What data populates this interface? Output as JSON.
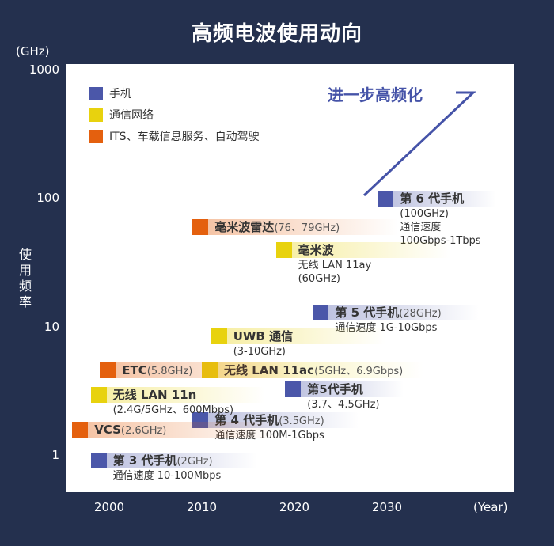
{
  "title": "高频电波使用动向",
  "y_unit": "(GHz)",
  "y_axis_title": "使用频率",
  "x_unit": "(Year)",
  "chart_data": {
    "type": "timeline",
    "y_scale": "log",
    "ylim": [
      0.5,
      1000
    ],
    "xlim": [
      1996,
      2044
    ],
    "yticks": [
      "1000",
      "100",
      "10",
      "1"
    ],
    "xticks": [
      "2000",
      "2010",
      "2020",
      "2030"
    ],
    "trend_label": "进一步高频化",
    "legend": [
      {
        "label": "手机",
        "color": "#4b57a9"
      },
      {
        "label": "通信网络",
        "color": "#e8d20e"
      },
      {
        "label": "ITS、车载信息服务、自动驾驶",
        "color": "#e4600e"
      }
    ],
    "entries": [
      {
        "category": 0,
        "year": 1998,
        "y": 0.92,
        "name": "第 3 代手机",
        "extra": "(2GHz)",
        "sub": [
          "通信速度 10-100Mbps"
        ]
      },
      {
        "category": 0,
        "year": 2009,
        "y": 1.9,
        "name": "第 4 代手机",
        "extra": "(3.5GHz)",
        "sub": [
          "通信速度 100M-1Gbps"
        ]
      },
      {
        "category": 0,
        "year": 2019,
        "y": 3.3,
        "name": "第5代手机",
        "extra": "",
        "sub": [
          "(3.7、4.5GHz)"
        ]
      },
      {
        "category": 0,
        "year": 2022,
        "y": 13,
        "name": "第 5 代手机",
        "extra": "(28GHz)",
        "sub": [
          "通信速度 1G-10Gbps"
        ]
      },
      {
        "category": 0,
        "year": 2029,
        "y": 100,
        "name": "第 6 代手机",
        "extra": "",
        "sub": [
          "(100GHz)",
          "通信速度",
          "100Gbps-1Tbps"
        ]
      },
      {
        "category": 1,
        "year": 1998,
        "y": 3.0,
        "name": "无线 LAN 11n",
        "extra": "",
        "sub": [
          "(2.4G/5GHz、600Mbps)"
        ]
      },
      {
        "category": 1,
        "year": 2010,
        "y": 4.6,
        "name": "无线 LAN 11ac",
        "extra": "(5GHz、6.9Gbps)",
        "sub": []
      },
      {
        "category": 1,
        "year": 2011,
        "y": 8.5,
        "name": "UWB 通信",
        "extra": "",
        "sub": [
          "(3-10GHz)"
        ]
      },
      {
        "category": 1,
        "year": 2018,
        "y": 40,
        "name": "毫米波",
        "extra": "",
        "sub": [
          "无线 LAN 11ay",
          "(60GHz)"
        ]
      },
      {
        "category": 2,
        "year": 1996,
        "y": 1.6,
        "name": "VCS",
        "extra": "(2.6GHz)",
        "sub": []
      },
      {
        "category": 2,
        "year": 1999,
        "y": 4.6,
        "name": "ETC",
        "extra": "(5.8GHz)",
        "sub": []
      },
      {
        "category": 2,
        "year": 2009,
        "y": 60,
        "name": "毫米波雷达",
        "extra": "(76、79GHz)",
        "sub": []
      }
    ]
  }
}
